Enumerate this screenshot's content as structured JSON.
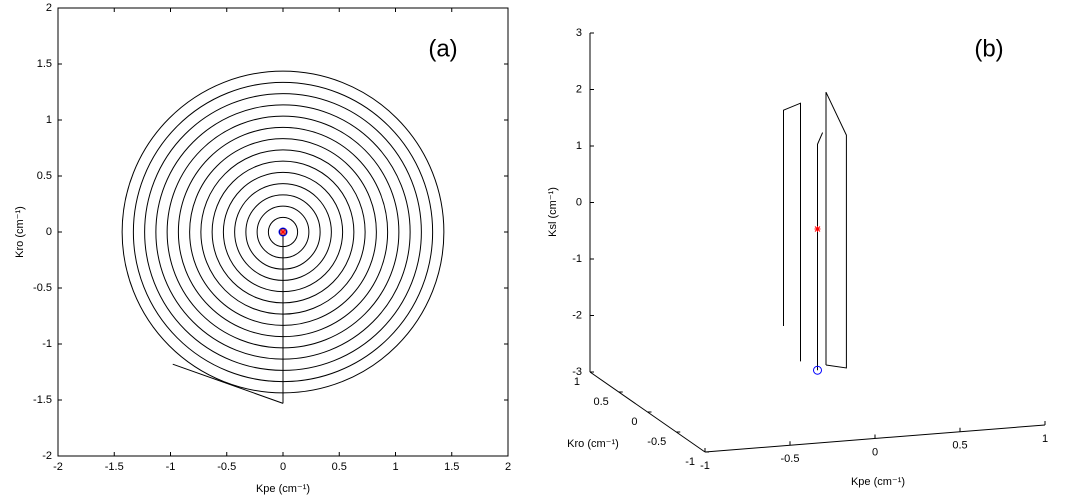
{
  "chart_data": [
    {
      "type": "rings",
      "annotation": "(a)",
      "xlabel": "Kpe (cm⁻¹)",
      "ylabel": "Kro (cm⁻¹)",
      "xlim": [
        -2,
        2
      ],
      "ylim": [
        -2,
        2
      ],
      "xticks": [
        -2,
        -1.5,
        -1,
        -0.5,
        0,
        0.5,
        1,
        1.5,
        2
      ],
      "yticks": [
        -2,
        -1.5,
        -1,
        -0.5,
        0,
        0.5,
        1,
        1.5,
        2
      ],
      "radii": [
        0.03,
        0.13,
        0.23,
        0.33,
        0.43,
        0.53,
        0.63,
        0.73,
        0.83,
        0.93,
        1.03,
        1.13,
        1.23,
        1.33,
        1.43
      ],
      "color": "#000000",
      "segments": [
        {
          "x": [
            0,
            0
          ],
          "y": [
            0,
            -1.53
          ]
        },
        {
          "x": [
            -0.98,
            0
          ],
          "y": [
            -1.18,
            -1.53
          ]
        }
      ],
      "start": {
        "x": 0,
        "y": 0,
        "color": "#0000ff"
      },
      "end": {
        "x": 0,
        "y": 0,
        "color": "#ff0000"
      }
    },
    {
      "type": "line3d",
      "annotation": "(b)",
      "xlabel": "Kpe (cm⁻¹)",
      "ylabel": "Kro (cm⁻¹)",
      "zlabel": "Ksl (cm⁻¹)",
      "xlim": [
        -1,
        1
      ],
      "ylim": [
        -1,
        1
      ],
      "zlim": [
        -3,
        3
      ],
      "xticks": [
        -1,
        -0.5,
        0,
        0.5,
        1
      ],
      "yticks": [
        -1,
        -0.5,
        0,
        0.5,
        1
      ],
      "zticks": [
        -3,
        -2,
        -1,
        0,
        1,
        2,
        3
      ],
      "color": "#000000",
      "segments": [
        {
          "x": [
            -0.2,
            -0.2,
            -0.1,
            -0.1
          ],
          "y": [
            0,
            0,
            0,
            0
          ],
          "z": [
            -1.67,
            2.15,
            2.25,
            -2.32
          ]
        },
        {
          "x": [
            0.05,
            0.05,
            0.17,
            0.17,
            0.05
          ],
          "y": [
            0,
            0,
            0,
            0,
            0
          ],
          "z": [
            -2.42,
            2.41,
            1.62,
            -2.5,
            -2.42
          ]
        },
        {
          "x": [
            0,
            0,
            0.03
          ],
          "y": [
            0,
            0,
            0
          ],
          "z": [
            -2.5,
            1.5,
            1.7
          ]
        }
      ],
      "start": {
        "x": 0,
        "y": 0,
        "z": -2.5,
        "color": "#0000ff"
      },
      "end": {
        "x": 0,
        "y": 0,
        "z": 0,
        "color": "#ff0000"
      }
    }
  ]
}
